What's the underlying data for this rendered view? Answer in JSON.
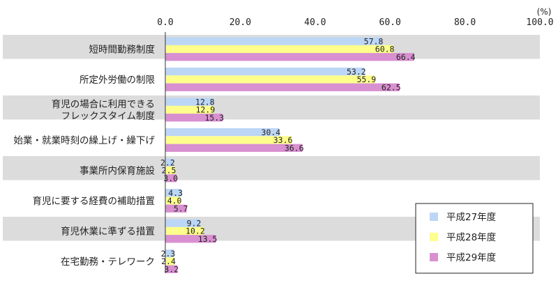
{
  "chart_data": {
    "type": "bar",
    "orientation": "horizontal",
    "unit": "(%)",
    "xlim": [
      0,
      100
    ],
    "ticks": [
      "0.0",
      "20.0",
      "40.0",
      "60.0",
      "80.0",
      "100.0"
    ],
    "tick_values": [
      0,
      20,
      40,
      60,
      80,
      100
    ],
    "grid": false,
    "legend_position": "bottom-right",
    "categories": [
      [
        "短時間勤務制度"
      ],
      [
        "所定外労働の制限"
      ],
      [
        "育児の場合に利用できる",
        "フレックスタイム制度"
      ],
      [
        "始業・就業時刻の繰上げ・繰下げ"
      ],
      [
        "事業所内保育施設"
      ],
      [
        "育児に要する経費の補助措置"
      ],
      [
        "育児休業に準ずる措置"
      ],
      [
        "在宅勤務・テレワーク"
      ]
    ],
    "series": [
      {
        "name": "平成27年度",
        "color": "#bcd6f6",
        "values": [
          57.8,
          53.2,
          12.8,
          30.4,
          2.2,
          4.3,
          9.2,
          2.3
        ],
        "labels": [
          "57.8",
          "53.2",
          "12.8",
          "30.4",
          "2.2",
          "4.3",
          "9.2",
          "2.3"
        ]
      },
      {
        "name": "平成28年度",
        "color": "#fefe8c",
        "values": [
          60.8,
          55.9,
          12.9,
          33.6,
          2.5,
          4.0,
          10.2,
          2.4
        ],
        "labels": [
          "60.8",
          "55.9",
          "12.9",
          "33.6",
          "2.5",
          "4.0",
          "10.2",
          "2.4"
        ]
      },
      {
        "name": "平成29年度",
        "color": "#d890d0",
        "values": [
          66.4,
          62.5,
          15.3,
          36.6,
          3.0,
          5.7,
          13.5,
          3.2
        ],
        "labels": [
          "66.4",
          "62.5",
          "15.3",
          "36.6",
          "3.0",
          "5.7",
          "13.5",
          "3.2"
        ]
      }
    ],
    "row_band_color": "#dcdcdc"
  }
}
